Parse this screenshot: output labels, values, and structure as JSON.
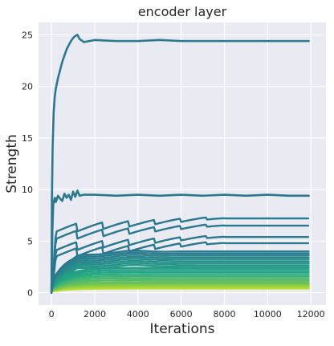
{
  "chart_data": {
    "type": "line",
    "title": "encoder layer",
    "xlabel": "Iterations",
    "ylabel": "Strength",
    "xlim": [
      -600,
      12700
    ],
    "ylim": [
      -1.2,
      26.2
    ],
    "x_ticks": [
      0,
      2000,
      4000,
      6000,
      8000,
      10000,
      12000
    ],
    "y_ticks": [
      0,
      5,
      10,
      15,
      20,
      25
    ],
    "grid": true,
    "background": "#eaeaf2",
    "grid_color": "#ffffff",
    "teal_color": "#2a788e",
    "mid_color": "#22a884",
    "yellow_color": "#bddf26",
    "series_top": {
      "x": [
        0,
        20,
        50,
        100,
        150,
        200,
        300,
        400,
        500,
        600,
        700,
        800,
        900,
        1000,
        1100,
        1200,
        1300,
        1500,
        2000,
        3000,
        4000,
        5000,
        6000,
        7000,
        8000,
        9000,
        10000,
        11000,
        11900
      ],
      "values": [
        0,
        9.0,
        14.0,
        17.5,
        19.0,
        19.8,
        20.8,
        21.6,
        22.4,
        23.0,
        23.6,
        24.0,
        24.4,
        24.7,
        24.9,
        25.0,
        24.6,
        24.3,
        24.5,
        24.4,
        24.4,
        24.5,
        24.4,
        24.4,
        24.4,
        24.4,
        24.4,
        24.4,
        24.4
      ]
    },
    "series_second": {
      "x": [
        0,
        40,
        80,
        150,
        200,
        300,
        400,
        500,
        600,
        700,
        800,
        900,
        1000,
        1100,
        1200,
        1300,
        1500,
        2000,
        3000,
        4000,
        5000,
        6000,
        7000,
        8000,
        9000,
        10000,
        11000,
        11900
      ],
      "values": [
        0,
        6.0,
        8.5,
        9.2,
        8.8,
        9.4,
        9.1,
        8.9,
        9.6,
        9.2,
        9.5,
        9.0,
        9.8,
        9.3,
        9.9,
        9.4,
        9.5,
        9.5,
        9.4,
        9.5,
        9.4,
        9.5,
        9.4,
        9.5,
        9.4,
        9.5,
        9.4,
        9.4
      ]
    },
    "series_sawtooth_end_values": [
      7.2,
      6.5,
      5.4,
      4.8
    ],
    "series_flat_end_values": [
      4.0,
      3.8,
      3.6,
      3.4,
      3.2,
      3.0,
      2.8,
      2.6,
      2.4,
      2.2,
      2.0,
      1.8,
      1.6,
      1.4,
      1.2,
      1.0,
      0.9,
      0.8,
      0.7,
      0.6,
      0.5,
      0.4
    ]
  }
}
